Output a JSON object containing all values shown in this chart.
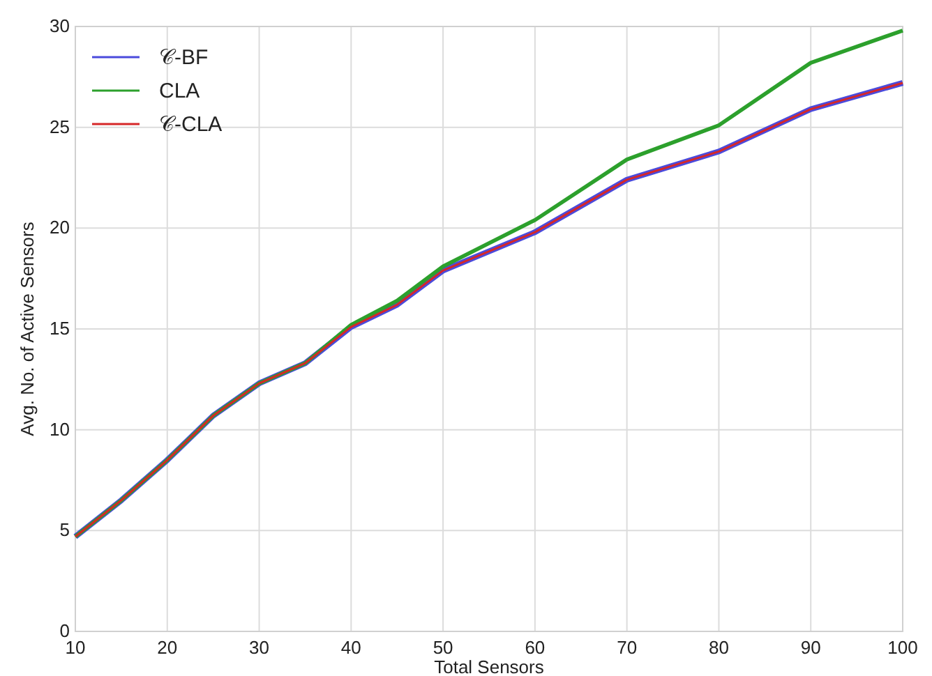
{
  "chart_data": {
    "type": "line",
    "xlabel": "Total Sensors",
    "ylabel": "Avg. No. of Active Sensors",
    "x": [
      10,
      15,
      20,
      25,
      30,
      35,
      40,
      45,
      50,
      60,
      70,
      80,
      90,
      100
    ],
    "series": [
      {
        "name": "𝒞-BF",
        "color": "#4b4bdc",
        "values": [
          4.7,
          6.5,
          8.5,
          10.7,
          12.3,
          13.3,
          15.1,
          16.2,
          17.9,
          19.8,
          22.4,
          23.8,
          25.9,
          27.2
        ]
      },
      {
        "name": "CLA",
        "color": "#2ca02c",
        "values": [
          4.7,
          6.5,
          8.5,
          10.7,
          12.3,
          13.3,
          15.2,
          16.4,
          18.1,
          20.4,
          23.4,
          25.1,
          28.2,
          29.8
        ]
      },
      {
        "name": "𝒞-CLA",
        "color": "#d62728",
        "values": [
          4.7,
          6.5,
          8.5,
          10.7,
          12.3,
          13.3,
          15.1,
          16.2,
          17.9,
          19.8,
          22.4,
          23.8,
          25.9,
          27.2
        ]
      }
    ],
    "xlim": [
      10,
      100
    ],
    "xticks": [
      10,
      20,
      30,
      40,
      50,
      60,
      70,
      80,
      90,
      100
    ],
    "ylim": [
      0,
      30
    ],
    "yticks": [
      0,
      5,
      10,
      15,
      20,
      25,
      30
    ],
    "grid": true,
    "legend": "top left",
    "line_style": "solid"
  }
}
